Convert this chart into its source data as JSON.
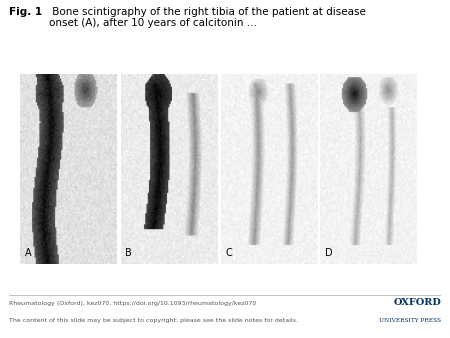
{
  "title_bold": "Fig. 1",
  "title_normal": " Bone scintigraphy of the right tibia of the patient at disease\nonset (A), after 10 years of calcitonin ...",
  "panel_labels": [
    "A",
    "B",
    "C",
    "D"
  ],
  "footer_left_line1": "Rheumatology (Oxford), kez070, https://doi.org/10.1093/rheumatology/kez070",
  "footer_left_line2": "The content of this slide may be subject to copyright: please see the slide notes for details.",
  "footer_right1": "OXFORD",
  "footer_right2": "UNIVERSITY PRESS",
  "bg_color": "#ffffff",
  "figure_width": 4.5,
  "figure_height": 3.38
}
